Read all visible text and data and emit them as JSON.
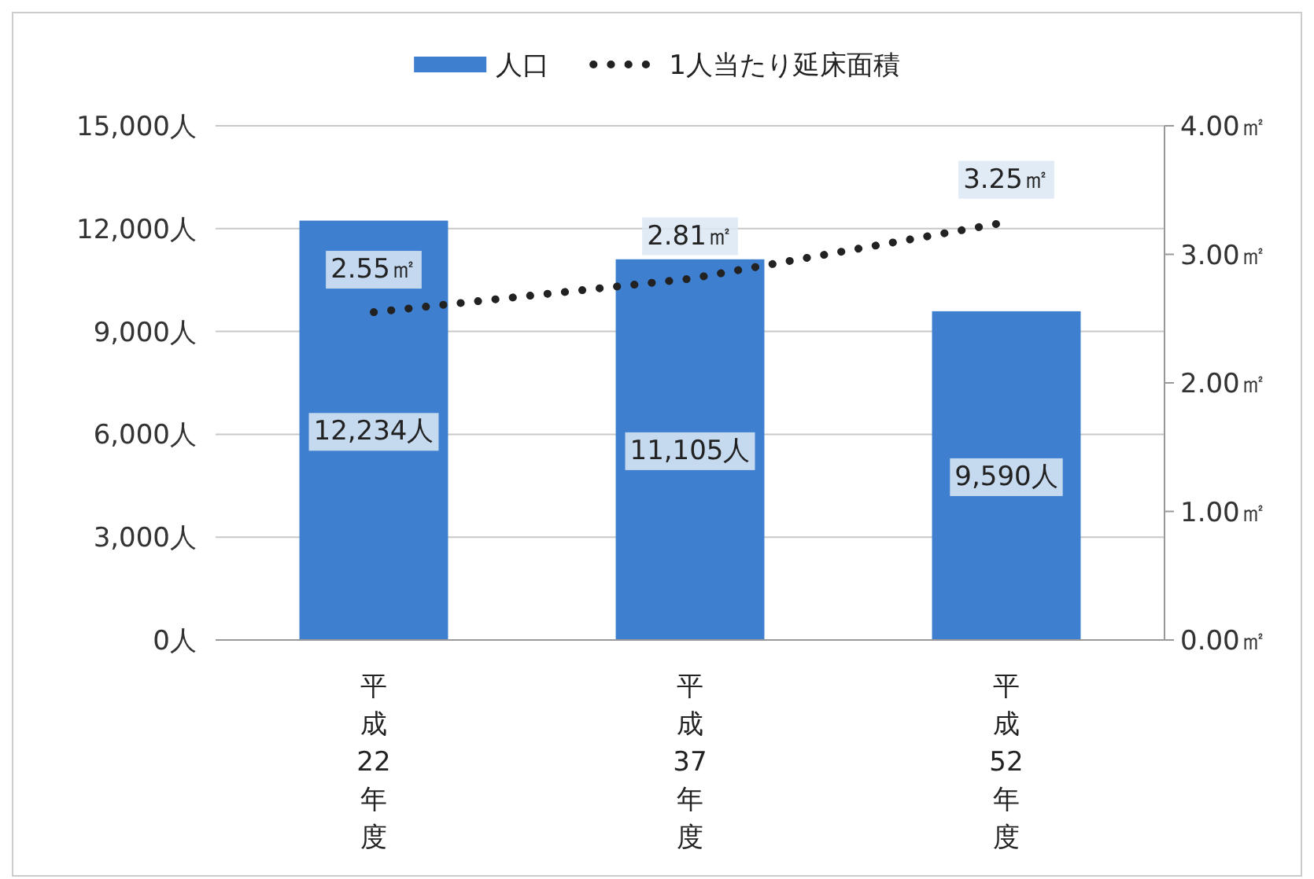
{
  "chart_data": {
    "type": "bar",
    "categories": [
      "平成22年度",
      "平成37年度",
      "平成52年度"
    ],
    "series": [
      {
        "name": "人口",
        "color": "#3f7fcf",
        "values": [
          12234,
          11105,
          9590
        ],
        "value_labels": [
          "12,234人",
          "11,105人",
          "9,590人"
        ]
      },
      {
        "name": "1人当たり延床面積",
        "type": "line",
        "axis": "y2",
        "color": "#222222",
        "line_style": "dotted",
        "marker": "none",
        "values": [
          2.55,
          2.81,
          3.25
        ],
        "value_labels": [
          "2.55㎡",
          "2.81㎡",
          "3.25㎡"
        ]
      }
    ],
    "ylim": [
      0,
      15000
    ],
    "yticks": [
      {
        "value": 0,
        "label": "0人"
      },
      {
        "value": 3000,
        "label": "3,000人"
      },
      {
        "value": 6000,
        "label": "6,000人"
      },
      {
        "value": 9000,
        "label": "9,000人"
      },
      {
        "value": 12000,
        "label": "12,000人"
      },
      {
        "value": 15000,
        "label": "15,000人"
      }
    ],
    "y2lim": [
      0,
      4
    ],
    "y2ticks": [
      {
        "value": 0,
        "label": "0.00㎡"
      },
      {
        "value": 1,
        "label": "1.00㎡"
      },
      {
        "value": 2,
        "label": "2.00㎡"
      },
      {
        "value": 3,
        "label": "3.00㎡"
      },
      {
        "value": 4,
        "label": "4.00㎡"
      }
    ],
    "grid": "y",
    "legend": "top"
  }
}
